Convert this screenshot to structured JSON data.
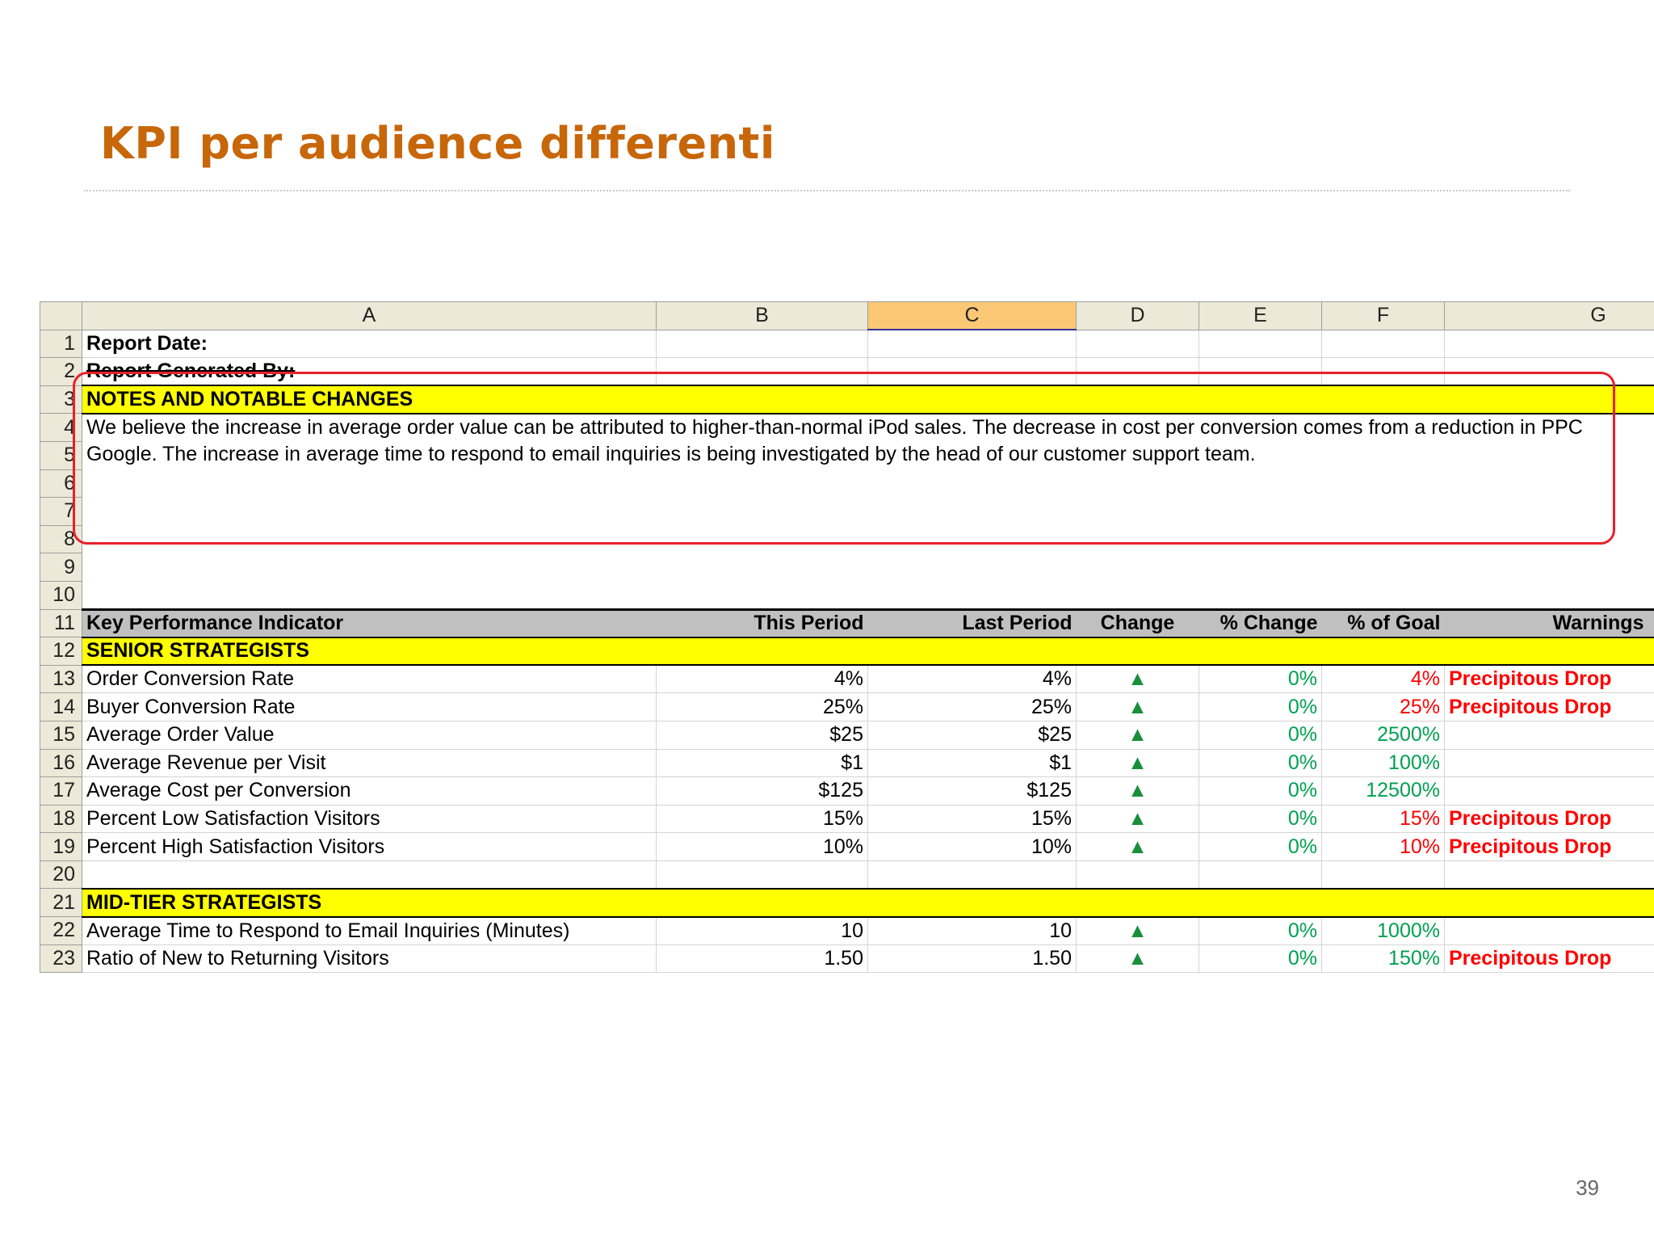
{
  "slide": {
    "title": "KPI per audience differenti",
    "page_number": "39"
  },
  "columns": [
    "A",
    "B",
    "C",
    "D",
    "E",
    "F",
    "G"
  ],
  "selected_column": "C",
  "row_numbers": [
    "1",
    "2",
    "3",
    "4",
    "5",
    "6",
    "7",
    "8",
    "9",
    "10",
    "11",
    "12",
    "13",
    "14",
    "15",
    "16",
    "17",
    "18",
    "19",
    "20",
    "21",
    "22",
    "23"
  ],
  "header_rows": {
    "report_date": "Report Date:",
    "report_generated_by": "Report Generated By:",
    "notes_heading": "NOTES AND NOTABLE CHANGES",
    "notes_line1": "We believe the increase in average order value can be attributed to higher-than-normal iPod sales.  The decrease in cost per conversion comes from a reduction in PPC",
    "notes_line2": "Google.  The increase in average time to respond to email inquiries is being investigated by the head of our customer support team."
  },
  "table_header": {
    "kpi": "Key Performance Indicator",
    "this_period": "This Period",
    "last_period": "Last Period",
    "change": "Change",
    "pct_change": "% Change",
    "pct_goal": "% of Goal",
    "warnings": "Warnings"
  },
  "sections": {
    "senior": "SENIOR STRATEGISTS",
    "mid": "MID-TIER STRATEGISTS"
  },
  "senior_rows": [
    {
      "kpi": "Order Conversion Rate",
      "this": "4%",
      "last": "4%",
      "change": "▲",
      "pct_change": "0%",
      "pct_goal": "4%",
      "goal_status": "red",
      "warning": "Precipitous Drop"
    },
    {
      "kpi": "Buyer Conversion Rate",
      "this": "25%",
      "last": "25%",
      "change": "▲",
      "pct_change": "0%",
      "pct_goal": "25%",
      "goal_status": "red",
      "warning": "Precipitous Drop"
    },
    {
      "kpi": "Average Order Value",
      "this": "$25",
      "last": "$25",
      "change": "▲",
      "pct_change": "0%",
      "pct_goal": "2500%",
      "goal_status": "green",
      "warning": ""
    },
    {
      "kpi": "Average Revenue per Visit",
      "this": "$1",
      "last": "$1",
      "change": "▲",
      "pct_change": "0%",
      "pct_goal": "100%",
      "goal_status": "green",
      "warning": ""
    },
    {
      "kpi": "Average Cost per Conversion",
      "this": "$125",
      "last": "$125",
      "change": "▲",
      "pct_change": "0%",
      "pct_goal": "12500%",
      "goal_status": "green",
      "warning": ""
    },
    {
      "kpi": "Percent Low Satisfaction Visitors",
      "this": "15%",
      "last": "15%",
      "change": "▲",
      "pct_change": "0%",
      "pct_goal": "15%",
      "goal_status": "red",
      "warning": "Precipitous Drop"
    },
    {
      "kpi": "Percent High Satisfaction Visitors",
      "this": "10%",
      "last": "10%",
      "change": "▲",
      "pct_change": "0%",
      "pct_goal": "10%",
      "goal_status": "red",
      "warning": "Precipitous Drop"
    }
  ],
  "mid_rows": [
    {
      "kpi": "Average Time to Respond to Email Inquiries (Minutes)",
      "this": "10",
      "last": "10",
      "change": "▲",
      "pct_change": "0%",
      "pct_goal": "1000%",
      "goal_status": "green",
      "warning": ""
    },
    {
      "kpi": "Ratio of New to Returning Visitors",
      "this": "1.50",
      "last": "1.50",
      "change": "▲",
      "pct_change": "0%",
      "pct_goal": "150%",
      "goal_status": "green",
      "warning": "Precipitous Drop"
    }
  ],
  "colors": {
    "title": "#c8660a",
    "section_fill": "#ffff00",
    "header_fill": "#c0c0c0",
    "positive": "#00a050",
    "negative": "#ff0000",
    "callout": "#e8202a"
  }
}
